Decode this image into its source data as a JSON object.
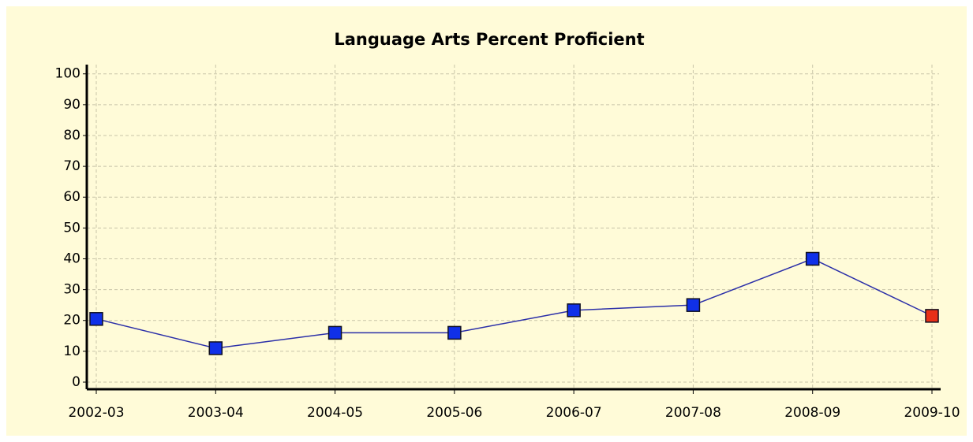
{
  "chart_data": {
    "type": "line",
    "title": "Language Arts Percent Proficient",
    "categories": [
      "2002-03",
      "2003-04",
      "2004-05",
      "2005-06",
      "2006-07",
      "2007-08",
      "2008-09",
      "2009-10"
    ],
    "series": [
      {
        "name": "Percent Proficient",
        "color": "#2b2fa8",
        "values": [
          20.5,
          11,
          16,
          16,
          23.3,
          25,
          40,
          21.5
        ],
        "point_colors": [
          "#1030e8",
          "#1030e8",
          "#1030e8",
          "#1030e8",
          "#1030e8",
          "#1030e8",
          "#1030e8",
          "#e83018"
        ]
      }
    ],
    "ylim": [
      -2.3,
      103
    ],
    "yticks": [
      0,
      10,
      20,
      30,
      40,
      50,
      60,
      70,
      80,
      90,
      100
    ],
    "grid": true
  }
}
